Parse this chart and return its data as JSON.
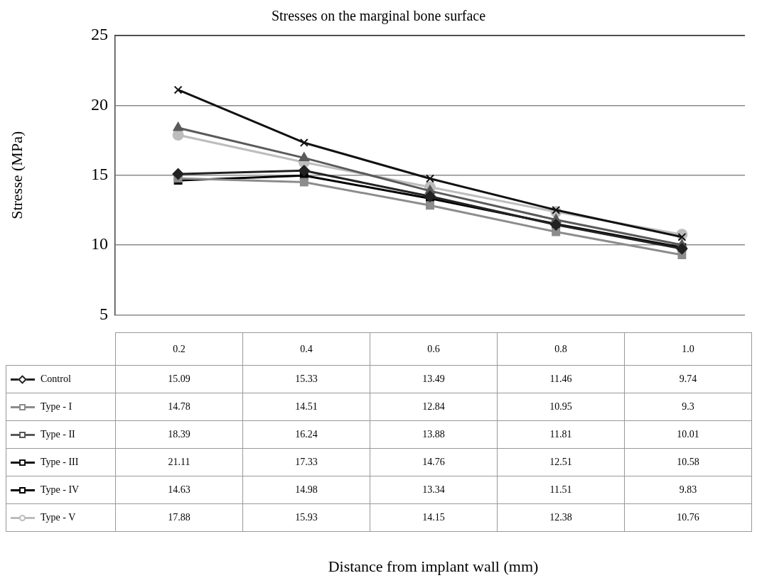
{
  "chart_data": {
    "type": "line",
    "title": "Stresses on the marginal bone surface",
    "annotations": [
      "Distance from implant wall (mm)"
    ],
    "ylabel": "Stresse (MPa)",
    "categories": [
      "0.2",
      "0.4",
      "0.6",
      "0.8",
      "1.0"
    ],
    "series": [
      {
        "name": "Control",
        "color": "#222222",
        "marker": "diamond",
        "values": [
          15.09,
          15.33,
          13.49,
          11.46,
          9.74
        ]
      },
      {
        "name": "Type - I",
        "color": "#8c8c8c",
        "marker": "square",
        "values": [
          14.78,
          14.51,
          12.84,
          10.95,
          9.3
        ]
      },
      {
        "name": "Type - II",
        "color": "#5a5a5a",
        "marker": "triangle",
        "values": [
          18.39,
          16.24,
          13.88,
          11.81,
          10.01
        ]
      },
      {
        "name": "Type - III",
        "color": "#111111",
        "marker": "cross",
        "values": [
          21.11,
          17.33,
          14.76,
          12.51,
          10.58
        ]
      },
      {
        "name": "Type - IV",
        "color": "#000000",
        "marker": "square",
        "values": [
          14.63,
          14.98,
          13.34,
          11.51,
          9.83
        ]
      },
      {
        "name": "Type - V",
        "color": "#bdbdbd",
        "marker": "circle",
        "values": [
          17.88,
          15.93,
          14.15,
          12.38,
          10.76
        ]
      }
    ],
    "ylim": [
      5,
      25
    ],
    "yticks": [
      5,
      10,
      15,
      20,
      25
    ],
    "grid": "y",
    "legend": "bottom left",
    "data_labels": true,
    "line_style": "solid"
  }
}
